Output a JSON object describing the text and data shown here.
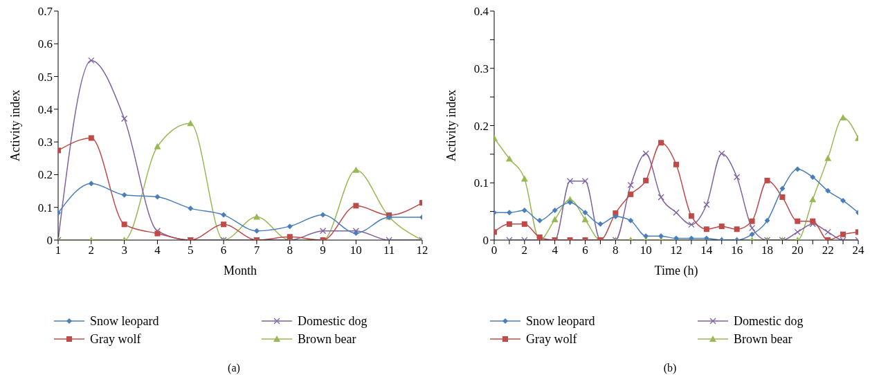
{
  "chart_data": [
    {
      "type": "line",
      "xlabel": "Month",
      "ylabel": "Activity index",
      "x": [
        1,
        2,
        3,
        4,
        5,
        6,
        7,
        8,
        9,
        10,
        11,
        12
      ],
      "xlim": [
        1,
        12
      ],
      "xticks": [
        1,
        2,
        3,
        4,
        5,
        6,
        7,
        8,
        9,
        10,
        11,
        12
      ],
      "ylim": [
        0,
        0.7
      ],
      "yticks": [
        0,
        0.1,
        0.2,
        0.3,
        0.4,
        0.5,
        0.6,
        0.7
      ],
      "grid": false,
      "legend": "bottom",
      "line_style": "solid",
      "annotations": [
        "(a)"
      ],
      "series": [
        {
          "name": "Snow leopard",
          "color": "#4a7ebb",
          "marker": "diamond",
          "values": [
            0.083,
            0.173,
            0.138,
            0.132,
            0.097,
            0.077,
            0.028,
            0.042,
            0.077,
            0.021,
            0.07,
            0.07
          ]
        },
        {
          "name": "Gray wolf",
          "color": "#be4b48",
          "marker": "square",
          "values": [
            0.274,
            0.312,
            0.048,
            0.02,
            0,
            0.048,
            0,
            0.01,
            0,
            0.105,
            0.076,
            0.114
          ]
        },
        {
          "name": "Domestic dog",
          "color": "#7e62a1",
          "marker": "cross",
          "values": [
            0,
            0.549,
            0.371,
            0.028,
            0,
            0,
            0,
            0,
            0.028,
            0.028,
            0,
            0
          ]
        },
        {
          "name": "Brown bear",
          "color": "#98b954",
          "marker": "triangle",
          "values": [
            0,
            0,
            0,
            0.286,
            0.357,
            0,
            0.071,
            0,
            0,
            0.214,
            0.071,
            0
          ]
        }
      ]
    },
    {
      "type": "line",
      "xlabel": "Time (h)",
      "ylabel": "Activity index",
      "x": [
        0,
        1,
        2,
        3,
        4,
        5,
        6,
        7,
        8,
        9,
        10,
        11,
        12,
        13,
        14,
        15,
        16,
        17,
        18,
        19,
        20,
        21,
        22,
        23,
        24
      ],
      "xlim": [
        0,
        24
      ],
      "xticks": [
        0,
        {
          "value": 1,
          "label": null
        },
        2,
        {
          "value": 3,
          "label": null
        },
        4,
        {
          "value": 5,
          "label": null
        },
        6,
        {
          "value": 7,
          "label": null
        },
        8,
        {
          "value": 9,
          "label": null
        },
        10,
        {
          "value": 11,
          "label": null
        },
        12,
        {
          "value": 13,
          "label": null
        },
        14,
        {
          "value": 15,
          "label": null
        },
        16,
        {
          "value": 17,
          "label": null
        },
        18,
        {
          "value": 19,
          "label": null
        },
        20,
        {
          "value": 21,
          "label": null
        },
        22,
        {
          "value": 23,
          "label": null
        },
        24
      ],
      "ylim": [
        0,
        0.4
      ],
      "yticks": [
        0,
        {
          "value": 0.05,
          "label": null
        },
        0.1,
        {
          "value": 0.15,
          "label": null
        },
        0.2,
        {
          "value": 0.25,
          "label": null
        },
        0.3,
        {
          "value": 0.35,
          "label": null
        },
        0.4
      ],
      "grid": false,
      "legend": "bottom",
      "line_style": "solid",
      "annotations": [
        "(b)"
      ],
      "series": [
        {
          "name": "Snow leopard",
          "color": "#4a7ebb",
          "marker": "diamond",
          "values": [
            0.048,
            0.048,
            0.052,
            0.034,
            0.052,
            0.066,
            0.048,
            0.028,
            0.041,
            0.034,
            0.007,
            0.007,
            0.003,
            0.003,
            0.003,
            0,
            0,
            0.01,
            0.034,
            0.09,
            0.124,
            0.11,
            0.086,
            0.069,
            0.048
          ]
        },
        {
          "name": "Gray wolf",
          "color": "#be4b48",
          "marker": "square",
          "values": [
            0.014,
            0.028,
            0.028,
            0.005,
            0,
            0,
            0,
            0,
            0.047,
            0.08,
            0.104,
            0.17,
            0.132,
            0.042,
            0.019,
            0.024,
            0.019,
            0.033,
            0.104,
            0.075,
            0.033,
            0.033,
            0,
            0.01,
            0.014
          ]
        },
        {
          "name": "Domestic dog",
          "color": "#7e62a1",
          "marker": "cross",
          "values": [
            null,
            0,
            0,
            0,
            0,
            0.103,
            0.103,
            0,
            0,
            0.096,
            0.151,
            0.075,
            0.048,
            0.027,
            0.062,
            0.151,
            0.11,
            0.021,
            0,
            0,
            0.014,
            0.028,
            0.014,
            0,
            0
          ]
        },
        {
          "name": "Brown bear",
          "color": "#98b954",
          "marker": "triangle",
          "values": [
            0.178,
            0.142,
            0.107,
            0,
            0.036,
            0.071,
            0.036,
            0,
            0,
            0,
            0,
            0,
            0,
            0,
            0,
            0,
            0,
            0,
            0,
            0,
            0,
            0.071,
            0.143,
            0.214,
            0.178
          ]
        }
      ]
    }
  ]
}
